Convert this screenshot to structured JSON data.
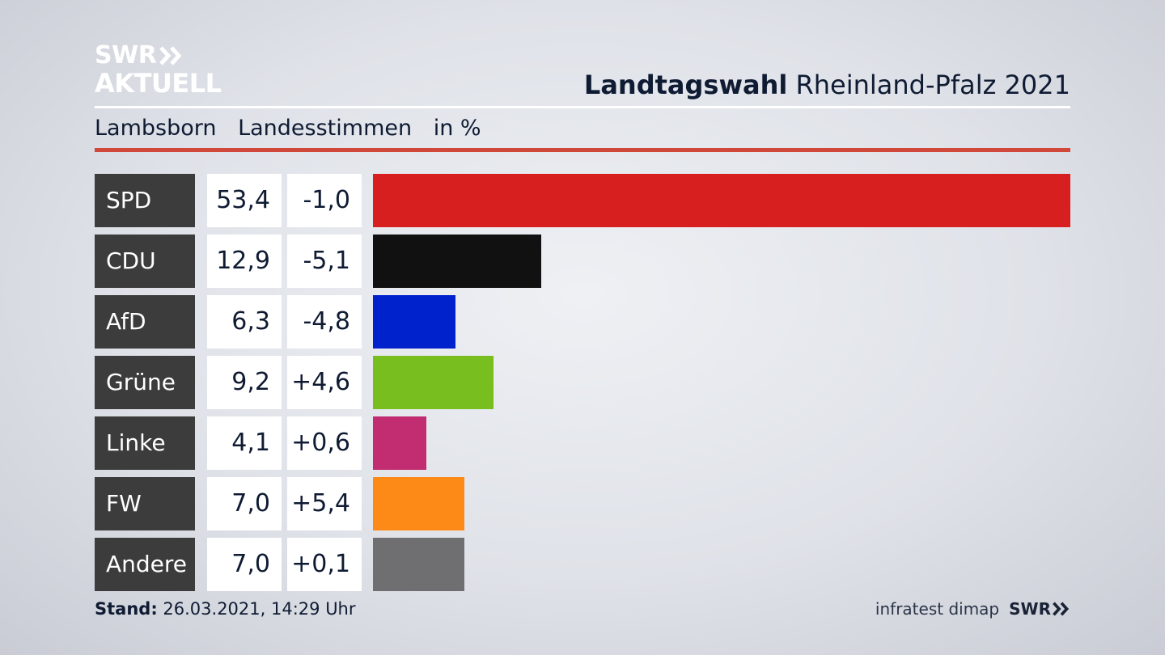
{
  "logo": {
    "line1": "SWR",
    "line2": "AKTUELL",
    "chevron_icon": "double-chevron-right-icon"
  },
  "header": {
    "title_bold": "Landtagswahl",
    "title_rest": "Rheinland-Pfalz 2021",
    "location": "Lambsborn",
    "vote_type": "Landesstimmen",
    "unit": "in %"
  },
  "colors": {
    "accent_rule": "#d0483a",
    "party_label_bg": "#3c3c3c"
  },
  "chart_data": {
    "type": "bar",
    "orientation": "horizontal",
    "title": "Landtagswahl Rheinland-Pfalz 2021",
    "subtitle": "Lambsborn Landesstimmen in %",
    "categories": [
      "SPD",
      "CDU",
      "AfD",
      "Grüne",
      "Linke",
      "FW",
      "Andere"
    ],
    "values": [
      53.4,
      12.9,
      6.3,
      9.2,
      4.1,
      7.0,
      7.0
    ],
    "value_labels": [
      "53,4",
      "12,9",
      "6,3",
      "9,2",
      "4,1",
      "7,0",
      "7,0"
    ],
    "diff_labels": [
      "-1,0",
      "-5,1",
      "-4,8",
      "+4,6",
      "+0,6",
      "+5,4",
      "+0,1"
    ],
    "colors": [
      "#d71f1f",
      "#111111",
      "#0022cc",
      "#78be1e",
      "#c22d72",
      "#fd8a17",
      "#6f6f71"
    ],
    "xlim": [
      0,
      53.4
    ],
    "grid": false,
    "legend": "none"
  },
  "footer": {
    "stand_label": "Stand:",
    "stand_value": "26.03.2021, 14:29 Uhr",
    "source": "infratest dimap",
    "brand": "SWR",
    "brand_icon": "double-chevron-right-icon"
  }
}
